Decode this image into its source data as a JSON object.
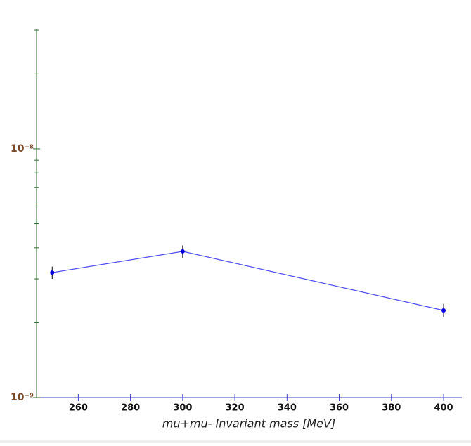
{
  "chart_data": {
    "type": "line",
    "x_label": "mu+mu- Invariant mass    [MeV]",
    "log_y": true,
    "x": [
      250,
      300,
      400
    ],
    "series": [
      {
        "values": [
          3.18e-09,
          3.87e-09,
          2.24e-09
        ],
        "errors": [
          1.8e-10,
          2.2e-10,
          1.4e-10
        ],
        "color": "#4d4dee",
        "marker_color": "#0000dd"
      }
    ],
    "xlim": [
      244,
      407
    ],
    "xticks": [
      260,
      280,
      300,
      320,
      340,
      360,
      380,
      400
    ],
    "ylim": [
      1e-09,
      3.02e-08
    ],
    "yticks": [
      {
        "value": 1e-09,
        "label": "10⁻⁹"
      },
      {
        "value": 1e-08,
        "label": "10⁻⁸"
      }
    ],
    "minor_yticks": [
      2e-09,
      3e-09,
      4e-09,
      5e-09,
      6e-09,
      7e-09,
      8e-09,
      9e-09,
      2e-08,
      3e-08
    ],
    "x_axis_color": "#3b3bd0",
    "y_axis_color": "#2e6b2e"
  }
}
